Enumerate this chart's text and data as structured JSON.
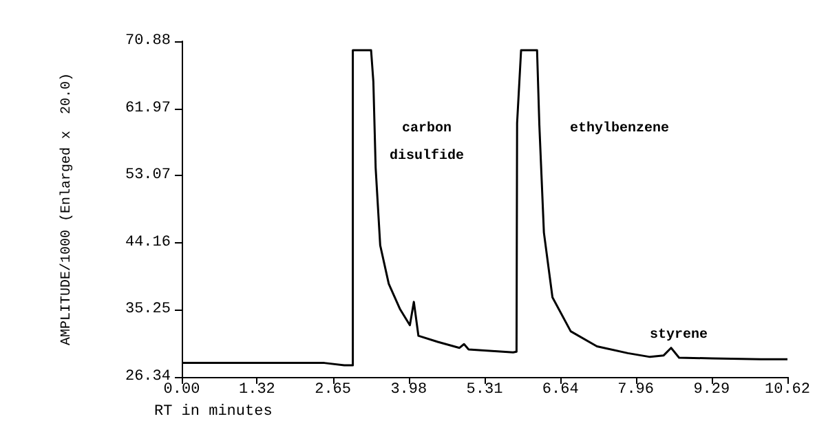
{
  "chart_data": {
    "type": "line",
    "xlabel": "RT in minutes",
    "ylabel": "AMPLITUDE/1000 (Enlarged x  20.0)",
    "x": [
      0,
      1.0,
      2.5,
      2.85,
      2.95,
      3.0,
      3.0,
      3.32,
      3.36,
      3.4,
      3.48,
      3.63,
      3.83,
      4.0,
      4.07,
      4.15,
      4.49,
      4.87,
      4.95,
      5.03,
      5.81,
      5.87,
      5.88,
      5.95,
      6.23,
      6.27,
      6.35,
      6.5,
      6.82,
      7.28,
      7.82,
      8.21,
      8.45,
      8.58,
      8.72,
      9.3,
      10.15,
      10.62
    ],
    "series": [
      {
        "color": "#000000",
        "values": [
          28.2,
          28.2,
          28.2,
          27.9,
          27.9,
          27.9,
          69.7,
          69.7,
          65.5,
          54.1,
          43.8,
          38.7,
          35.3,
          33.2,
          36.3,
          31.8,
          31.0,
          30.2,
          30.7,
          30.0,
          29.6,
          29.7,
          60,
          69.7,
          69.7,
          59.8,
          45.5,
          36.9,
          32.4,
          30.4,
          29.5,
          29.0,
          29.2,
          30.2,
          28.9,
          28.8,
          28.7,
          28.7
        ]
      }
    ],
    "xlim": [
      0,
      10.62
    ],
    "xticks": [
      {
        "value": 0,
        "label": "0.00"
      },
      1.32,
      2.65,
      3.98,
      5.31,
      6.64,
      7.96,
      9.29,
      10.62
    ],
    "ylim": [
      26.34,
      70.88
    ],
    "yticks": [
      26.34,
      35.25,
      44.16,
      53.07,
      61.97,
      70.88
    ],
    "grid": false,
    "marker": "none",
    "line_style": "solid",
    "annotations": [
      "carbon\ndisulfide",
      "ethylbenzene",
      "styrene"
    ]
  }
}
